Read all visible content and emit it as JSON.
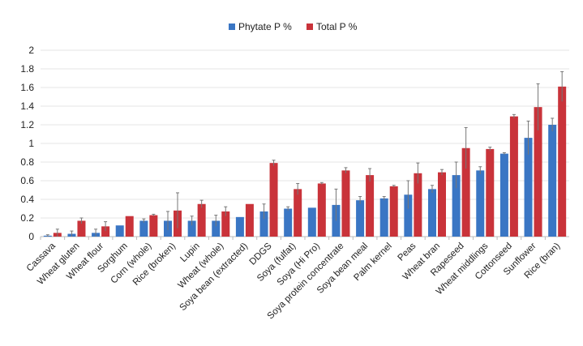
{
  "chart_data": {
    "type": "bar",
    "title": "",
    "xlabel": "",
    "ylabel": "",
    "ylim": [
      0,
      2
    ],
    "yticks": [
      "0",
      "0.2",
      "0.4",
      "0.6",
      "0.8",
      "1",
      "1.2",
      "1.4",
      "1.6",
      "1.8",
      "2"
    ],
    "grid": true,
    "legend_position": "top-center",
    "categories": [
      "Cassava",
      "Wheat gluten",
      "Wheat flour",
      "Sorghum",
      "Corn (whole)",
      "Rice (broken)",
      "Lupin",
      "Wheat (whole)",
      "Soya bean (extracted)",
      "DDGS",
      "Soya (fulfat)",
      "Soya (Hi Pro)",
      "Soya protein concentrate",
      "Soya bean meal",
      "Palm kernel",
      "Peas",
      "Wheat bran",
      "Rapeseed",
      "Wheat middlings",
      "Cottonseed",
      "Sunflower",
      "Rice (bran)"
    ],
    "series": [
      {
        "name": "Phytate P %",
        "color": "#3a76c4",
        "values": [
          0.01,
          0.03,
          0.04,
          0.12,
          0.17,
          0.17,
          0.17,
          0.17,
          0.21,
          0.27,
          0.3,
          0.31,
          0.34,
          0.39,
          0.41,
          0.45,
          0.51,
          0.66,
          0.71,
          0.89,
          1.06,
          1.2
        ],
        "errors": [
          0.01,
          0.03,
          0.04,
          0,
          0.02,
          0.1,
          0.05,
          0.06,
          0,
          0.08,
          0.02,
          0,
          0.17,
          0.04,
          0.02,
          0.15,
          0.04,
          0.14,
          0.04,
          0.01,
          0.18,
          0.07
        ]
      },
      {
        "name": "Total P %",
        "color": "#c9333a",
        "values": [
          0.04,
          0.17,
          0.11,
          0.22,
          0.23,
          0.28,
          0.35,
          0.27,
          0.35,
          0.79,
          0.51,
          0.57,
          0.71,
          0.66,
          0.54,
          0.68,
          0.69,
          0.95,
          0.94,
          1.29,
          1.39,
          1.61
        ],
        "errors": [
          0.04,
          0.03,
          0.05,
          0,
          0.01,
          0.19,
          0.04,
          0.05,
          0,
          0.03,
          0.06,
          0.01,
          0.03,
          0.07,
          0.01,
          0.11,
          0.03,
          0.22,
          0.02,
          0.02,
          0.25,
          0.16
        ]
      }
    ]
  }
}
